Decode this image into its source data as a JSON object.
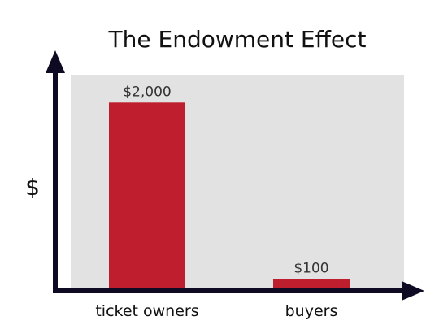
{
  "chart_data": {
    "type": "bar",
    "title": "The Endowment Effect",
    "xlabel": "",
    "ylabel": "$",
    "categories": [
      "ticket owners",
      "buyers"
    ],
    "values": [
      2000,
      100
    ],
    "data_labels": [
      "$2,000",
      "$100"
    ],
    "ylim": [
      0,
      2300
    ],
    "grid": false,
    "legend": "none",
    "colors": {
      "bar": "#bf1e2e",
      "plot_background": "#e2e2e2",
      "axis": "#0f0a24"
    }
  }
}
